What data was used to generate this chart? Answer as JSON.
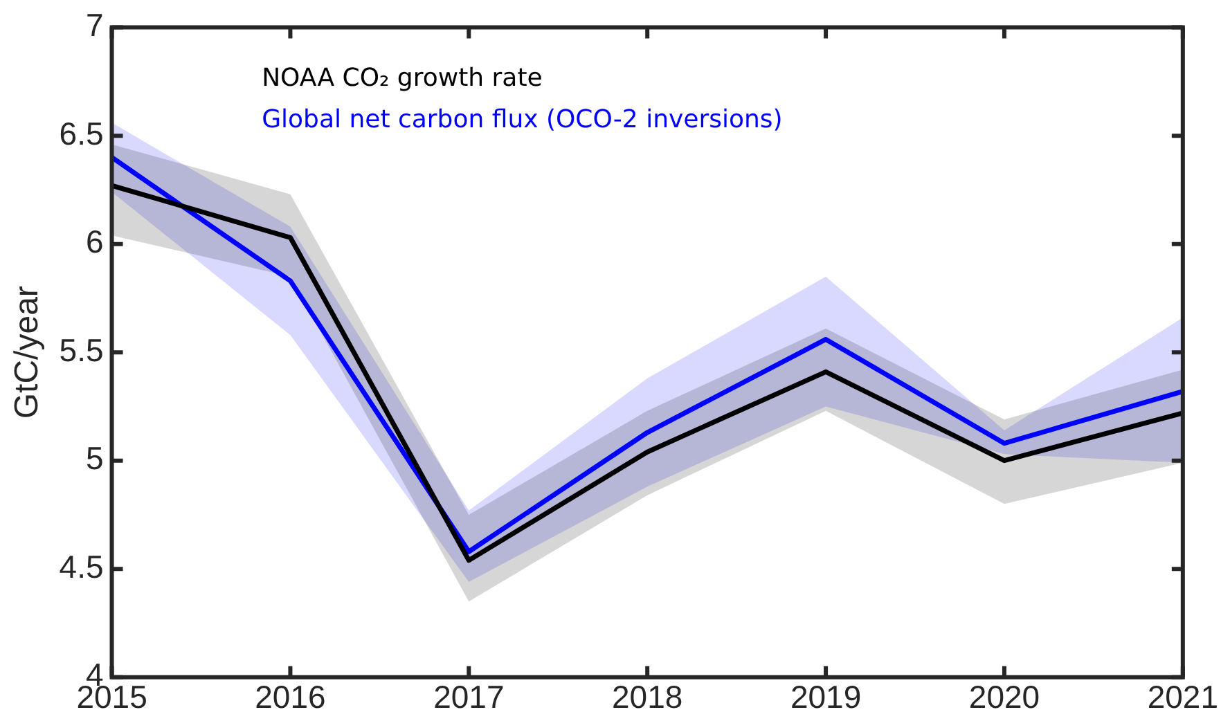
{
  "chart_data": {
    "type": "line",
    "ylabel": "GtC/year",
    "x": [
      2015,
      2016,
      2017,
      2018,
      2019,
      2020,
      2021
    ],
    "xlim": [
      2015,
      2021
    ],
    "xticks": [
      2015,
      2016,
      2017,
      2018,
      2019,
      2020,
      2021
    ],
    "ylim": [
      4,
      7
    ],
    "yticks": [
      4,
      4.5,
      5,
      5.5,
      6,
      6.5,
      7
    ],
    "grid": false,
    "legend": "top left",
    "marker": "none",
    "line_style": "solid",
    "series": [
      {
        "name": "NOAA CO₂ growth rate",
        "color": "#000000",
        "values": [
          6.27,
          6.03,
          4.54,
          5.04,
          5.41,
          5.0,
          5.22
        ],
        "lower": [
          6.04,
          5.85,
          4.35,
          4.84,
          5.23,
          4.8,
          4.99
        ],
        "upper": [
          6.46,
          6.23,
          4.75,
          5.23,
          5.61,
          5.19,
          5.42
        ]
      },
      {
        "name": "Global net carbon flux (OCO-2 inversions)",
        "color": "#0000ff",
        "values": [
          6.4,
          5.83,
          4.58,
          5.13,
          5.56,
          5.08,
          5.32
        ],
        "lower": [
          6.24,
          5.58,
          4.44,
          4.88,
          5.25,
          5.03,
          4.99
        ],
        "upper": [
          6.56,
          6.08,
          4.77,
          5.38,
          5.85,
          5.14,
          5.66
        ]
      }
    ]
  }
}
